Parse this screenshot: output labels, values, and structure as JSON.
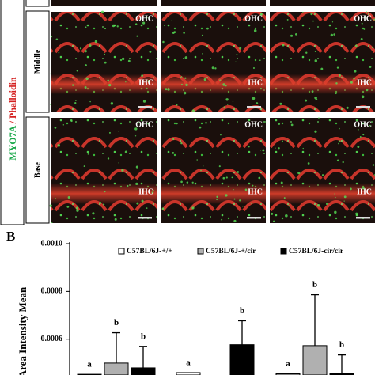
{
  "panel_a": {
    "stain_green": "MYO7A",
    "stain_sep": "/",
    "stain_red": "Phalloidin",
    "rows": [
      {
        "label": "Middle"
      },
      {
        "label": "Base"
      }
    ],
    "region_outer": "OHC",
    "region_inner": "IHC"
  },
  "chart_data": {
    "type": "bar",
    "panel_label": "B",
    "y_label": "Area Intensity Mean",
    "categories": [
      null,
      null,
      null
    ],
    "ylim": [
      0.00045,
      0.001
    ],
    "yticks": [
      {
        "value": 0.0006,
        "label": "0.0006"
      },
      {
        "value": 0.0008,
        "label": "0.0008"
      },
      {
        "value": 0.001,
        "label": "0.0010"
      }
    ],
    "series": [
      {
        "name": "C57BL/6J-+/+",
        "color": "#ffffff",
        "values": [
          0.000453,
          0.00046,
          0.000455
        ],
        "errors": [
          null,
          null,
          null
        ],
        "letters": [
          "a",
          "a",
          "a"
        ]
      },
      {
        "name": "C57BL/6J-+/cir",
        "color": "#b0b0b0",
        "values": [
          0.0005,
          null,
          0.000573
        ],
        "errors": [
          0.000127,
          null,
          0.000213
        ],
        "letters": [
          "b",
          null,
          "b"
        ]
      },
      {
        "name": "C57BL/6J-cir/cir",
        "color": "#000000",
        "values": [
          0.00048,
          0.000577,
          0.000457
        ],
        "errors": [
          9e-05,
          0.0001,
          7.7e-05
        ],
        "letters": [
          "b",
          "b",
          "b"
        ]
      }
    ]
  }
}
